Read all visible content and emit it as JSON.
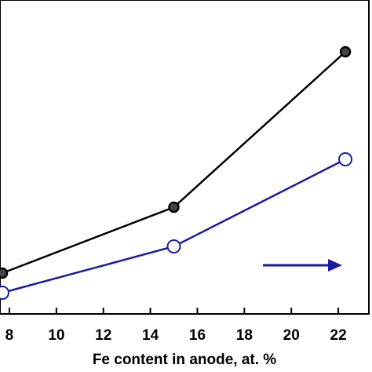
{
  "chart_data": {
    "type": "line",
    "x_label": "Fe content in anode, at. %",
    "x": [
      7.7,
      15,
      22.3
    ],
    "series": [
      {
        "name": null,
        "color": "#000000",
        "values": [
          13,
          34,
          83.5
        ]
      },
      {
        "name": null,
        "color": "#1a1aa6",
        "values": [
          6.75,
          21.5,
          49.25
        ],
        "axis": "y2"
      }
    ],
    "xlim": [
      7.6,
      23.3
    ],
    "xticks": [
      8,
      10,
      12,
      14,
      16,
      18,
      20,
      22
    ],
    "ylim": [
      0,
      100
    ],
    "y2lim": [
      0,
      100
    ]
  }
}
